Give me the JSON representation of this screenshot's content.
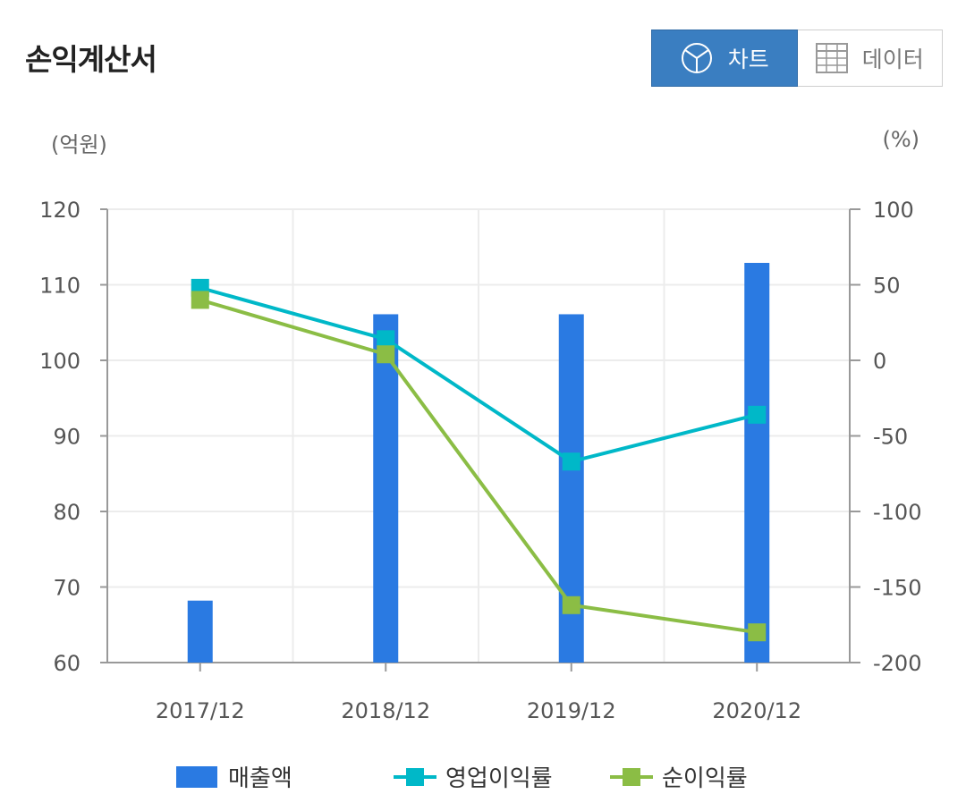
{
  "header": {
    "title": "손익계산서"
  },
  "toggle": {
    "chart_label": "차트",
    "data_label": "데이터",
    "selected": "chart"
  },
  "colors": {
    "bar": "#2a7ae2",
    "operating": "#00b8c8",
    "net": "#8bbd45",
    "toggle_active": "#3a7ec1"
  },
  "icons": {
    "chart": "pie-chart-icon",
    "data": "table-grid-icon"
  },
  "chart_data": {
    "type": "bar",
    "categories": [
      "2017/12",
      "2018/12",
      "2019/12",
      "2020/12"
    ],
    "y_left": {
      "label": "(억원)",
      "min": 60,
      "max": 120,
      "ticks": [
        60,
        70,
        80,
        90,
        100,
        110,
        120
      ]
    },
    "y_right": {
      "label": "(%)",
      "min": -200,
      "max": 100,
      "ticks": [
        -200,
        -150,
        -100,
        -50,
        0,
        50,
        100
      ]
    },
    "grid": true,
    "legend_position": "bottom",
    "series": [
      {
        "name": "매출액",
        "type": "bar",
        "axis": "left",
        "values": [
          68.2,
          106.1,
          106.1,
          112.9
        ]
      },
      {
        "name": "영업이익률",
        "type": "line",
        "axis": "right",
        "values": [
          48,
          14,
          -67,
          -36
        ]
      },
      {
        "name": "순이익률",
        "type": "line",
        "axis": "right",
        "values": [
          40,
          4,
          -162,
          -180
        ]
      }
    ]
  }
}
